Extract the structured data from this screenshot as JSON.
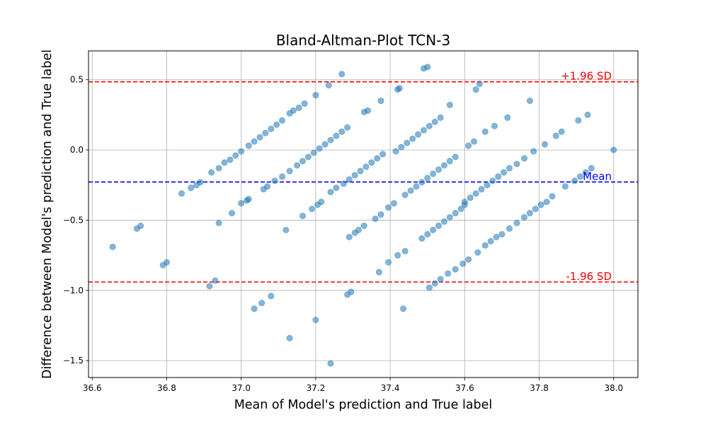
{
  "chart_data": {
    "type": "scatter",
    "title": "Bland-Altman-Plot TCN-3",
    "xlabel": "Mean of Model's prediction and True label",
    "ylabel": "Difference between Model's prediction and True label",
    "xlim": [
      36.59,
      38.065
    ],
    "ylim": [
      -1.62,
      0.705
    ],
    "xticks": [
      36.6,
      36.8,
      37.0,
      37.2,
      37.4,
      37.6,
      37.8,
      38.0
    ],
    "xtick_labels": [
      "36.6",
      "36.8",
      "37.0",
      "37.2",
      "37.4",
      "37.6",
      "37.8",
      "38.0"
    ],
    "yticks": [
      0.5,
      0.0,
      -0.5,
      -1.0,
      -1.5
    ],
    "ytick_labels": [
      "0.5",
      "0.0",
      "−0.5",
      "−1.0",
      "−1.5"
    ],
    "grid": true,
    "point_color": "#1f77b4",
    "reference_lines": [
      {
        "name": "+1.96 SD",
        "y": 0.485,
        "color": "#ff0000"
      },
      {
        "name": "Mean",
        "y": -0.228,
        "color": "#0000ff"
      },
      {
        "name": "-1.96 SD",
        "y": -0.94,
        "color": "#ff0000"
      }
    ],
    "points": [
      [
        36.655,
        -0.69
      ],
      [
        36.72,
        -0.56
      ],
      [
        36.73,
        -0.54
      ],
      [
        36.79,
        -0.82
      ],
      [
        36.8,
        -0.8
      ],
      [
        36.84,
        -0.31
      ],
      [
        36.865,
        -0.27
      ],
      [
        36.88,
        -0.25
      ],
      [
        36.89,
        -0.23
      ],
      [
        36.915,
        -0.97
      ],
      [
        36.93,
        -0.93
      ],
      [
        36.92,
        -0.16
      ],
      [
        36.94,
        -0.13
      ],
      [
        36.94,
        -0.52
      ],
      [
        36.955,
        -0.09
      ],
      [
        36.97,
        -0.07
      ],
      [
        36.975,
        -0.45
      ],
      [
        36.985,
        -0.04
      ],
      [
        37.0,
        -0.01
      ],
      [
        37.02,
        0.03
      ],
      [
        37.035,
        0.06
      ],
      [
        37.05,
        0.09
      ],
      [
        37.065,
        0.12
      ],
      [
        37.08,
        0.15
      ],
      [
        37.095,
        0.18
      ],
      [
        37.11,
        0.21
      ],
      [
        37.13,
        0.26
      ],
      [
        37.14,
        0.28
      ],
      [
        37.155,
        0.3
      ],
      [
        37.17,
        0.33
      ],
      [
        37.0,
        -0.38
      ],
      [
        37.015,
        -0.36
      ],
      [
        37.02,
        -0.35
      ],
      [
        37.035,
        -1.13
      ],
      [
        37.055,
        -1.09
      ],
      [
        37.08,
        -1.04
      ],
      [
        37.13,
        -1.34
      ],
      [
        37.06,
        -0.28
      ],
      [
        37.07,
        -0.26
      ],
      [
        37.09,
        -0.22
      ],
      [
        37.11,
        -0.19
      ],
      [
        37.12,
        -0.57
      ],
      [
        37.13,
        -0.15
      ],
      [
        37.15,
        -0.11
      ],
      [
        37.165,
        -0.08
      ],
      [
        37.18,
        -0.05
      ],
      [
        37.195,
        -0.02
      ],
      [
        37.21,
        0.01
      ],
      [
        37.225,
        0.04
      ],
      [
        37.24,
        0.07
      ],
      [
        37.255,
        0.1
      ],
      [
        37.27,
        0.13
      ],
      [
        37.285,
        0.16
      ],
      [
        37.165,
        -0.47
      ],
      [
        37.19,
        -0.42
      ],
      [
        37.205,
        -0.39
      ],
      [
        37.215,
        -0.37
      ],
      [
        37.2,
        0.39
      ],
      [
        37.235,
        0.46
      ],
      [
        37.27,
        0.54
      ],
      [
        37.2,
        -1.21
      ],
      [
        37.24,
        -1.52
      ],
      [
        37.285,
        -1.03
      ],
      [
        37.295,
        -1.01
      ],
      [
        37.24,
        -0.3
      ],
      [
        37.255,
        -0.27
      ],
      [
        37.275,
        -0.24
      ],
      [
        37.29,
        -0.21
      ],
      [
        37.305,
        -0.18
      ],
      [
        37.32,
        -0.15
      ],
      [
        37.335,
        -0.12
      ],
      [
        37.35,
        -0.09
      ],
      [
        37.365,
        -0.06
      ],
      [
        37.38,
        -0.03
      ],
      [
        37.33,
        0.27
      ],
      [
        37.34,
        0.28
      ],
      [
        37.375,
        0.35
      ],
      [
        37.42,
        0.43
      ],
      [
        37.425,
        0.44
      ],
      [
        37.29,
        -0.62
      ],
      [
        37.305,
        -0.59
      ],
      [
        37.315,
        -0.57
      ],
      [
        37.33,
        -0.54
      ],
      [
        37.36,
        -0.49
      ],
      [
        37.37,
        -0.87
      ],
      [
        37.375,
        -0.46
      ],
      [
        37.395,
        -0.41
      ],
      [
        37.41,
        -0.38
      ],
      [
        37.395,
        -0.8
      ],
      [
        37.42,
        -0.75
      ],
      [
        37.435,
        -1.13
      ],
      [
        37.44,
        -0.72
      ],
      [
        37.415,
        -0.01
      ],
      [
        37.43,
        0.02
      ],
      [
        37.445,
        0.05
      ],
      [
        37.46,
        0.08
      ],
      [
        37.475,
        0.11
      ],
      [
        37.49,
        0.14
      ],
      [
        37.505,
        0.17
      ],
      [
        37.52,
        0.2
      ],
      [
        37.535,
        0.23
      ],
      [
        37.49,
        0.58
      ],
      [
        37.5,
        0.59
      ],
      [
        37.44,
        -0.32
      ],
      [
        37.455,
        -0.29
      ],
      [
        37.47,
        -0.26
      ],
      [
        37.485,
        -0.23
      ],
      [
        37.5,
        -0.2
      ],
      [
        37.515,
        -0.17
      ],
      [
        37.53,
        -0.14
      ],
      [
        37.545,
        -0.11
      ],
      [
        37.56,
        -0.08
      ],
      [
        37.575,
        -0.05
      ],
      [
        37.56,
        0.32
      ],
      [
        37.63,
        0.43
      ],
      [
        37.64,
        0.47
      ],
      [
        37.485,
        -0.63
      ],
      [
        37.5,
        -0.6
      ],
      [
        37.515,
        -0.57
      ],
      [
        37.53,
        -0.54
      ],
      [
        37.545,
        -0.51
      ],
      [
        37.56,
        -0.48
      ],
      [
        37.575,
        -0.45
      ],
      [
        37.59,
        -0.42
      ],
      [
        37.6,
        -0.39
      ],
      [
        37.505,
        -0.98
      ],
      [
        37.52,
        -0.95
      ],
      [
        37.535,
        -0.92
      ],
      [
        37.555,
        -0.88
      ],
      [
        37.575,
        -0.85
      ],
      [
        37.595,
        -0.81
      ],
      [
        37.61,
        -0.78
      ],
      [
        37.61,
        0.03
      ],
      [
        37.625,
        0.06
      ],
      [
        37.655,
        0.13
      ],
      [
        37.68,
        0.17
      ],
      [
        37.715,
        0.23
      ],
      [
        37.775,
        0.35
      ],
      [
        37.6,
        -0.37
      ],
      [
        37.615,
        -0.34
      ],
      [
        37.63,
        -0.31
      ],
      [
        37.645,
        -0.28
      ],
      [
        37.66,
        -0.25
      ],
      [
        37.675,
        -0.22
      ],
      [
        37.69,
        -0.19
      ],
      [
        37.705,
        -0.16
      ],
      [
        37.72,
        -0.13
      ],
      [
        37.74,
        -0.1
      ],
      [
        37.76,
        -0.06
      ],
      [
        37.785,
        -0.01
      ],
      [
        37.815,
        0.04
      ],
      [
        37.845,
        0.1
      ],
      [
        37.86,
        0.13
      ],
      [
        37.905,
        0.21
      ],
      [
        37.93,
        0.25
      ],
      [
        38.0,
        0.0
      ],
      [
        37.635,
        -0.73
      ],
      [
        37.655,
        -0.68
      ],
      [
        37.67,
        -0.65
      ],
      [
        37.685,
        -0.62
      ],
      [
        37.7,
        -0.6
      ],
      [
        37.72,
        -0.56
      ],
      [
        37.74,
        -0.52
      ],
      [
        37.76,
        -0.48
      ],
      [
        37.775,
        -0.45
      ],
      [
        37.79,
        -0.42
      ],
      [
        37.805,
        -0.39
      ],
      [
        37.82,
        -0.37
      ],
      [
        37.835,
        -0.33
      ],
      [
        37.87,
        -0.26
      ],
      [
        37.895,
        -0.22
      ],
      [
        37.91,
        -0.19
      ],
      [
        37.925,
        -0.16
      ],
      [
        37.94,
        -0.13
      ]
    ]
  }
}
